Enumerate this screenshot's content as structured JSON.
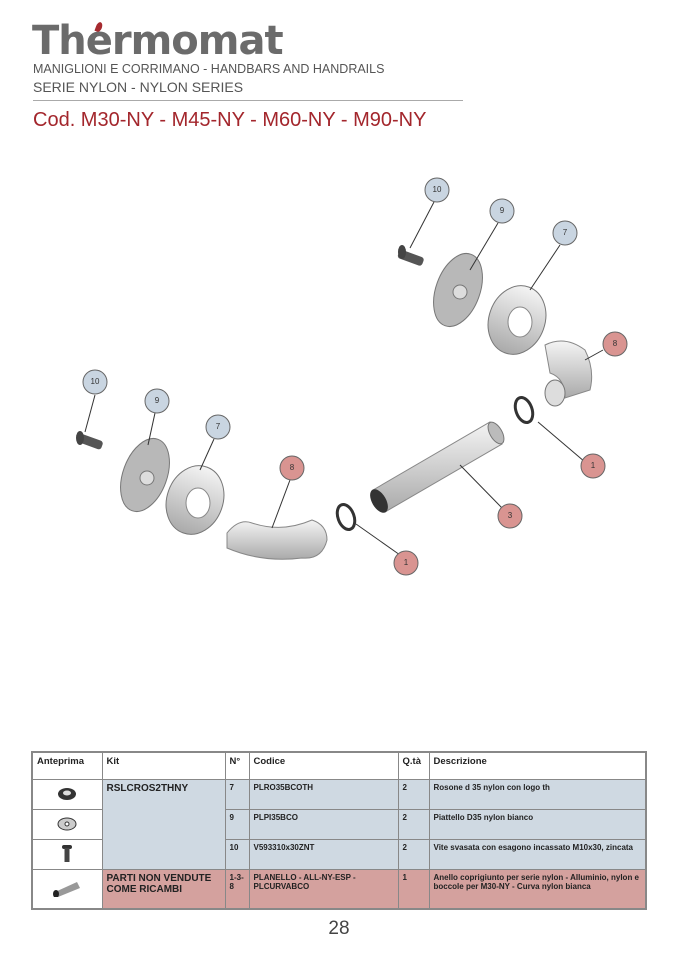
{
  "header": {
    "brand": "Thermomat",
    "subtitle1": "MANIGLIONI E CORRIMANO - HANDBARS AND HANDRAILS",
    "subtitle2": "SERIE NYLON - NYLON SERIES",
    "code_title": "Cod. M30-NY - M45-NY - M60-NY  - M90-NY"
  },
  "diagram": {
    "callouts": [
      "10",
      "9",
      "7",
      "8",
      "1",
      "3",
      "10",
      "9",
      "7",
      "8",
      "1"
    ],
    "colors": {
      "kit": "#c9d5e1",
      "not_sold": "#d99491"
    }
  },
  "table": {
    "headers": [
      "Anteprima",
      "Kit",
      "N°",
      "Codice",
      "Q.tà",
      "Descrizione"
    ],
    "kit_name": "RSLCROS2THNY",
    "rows": [
      {
        "preview": "rosette-icon",
        "n": "7",
        "code": "PLRO35BCOTH",
        "qty": "2",
        "desc": "Rosone d 35 nylon con logo th"
      },
      {
        "preview": "plate-icon",
        "n": "9",
        "code": "PLPI35BCO",
        "qty": "2",
        "desc": "Piattello D35 nylon bianco"
      },
      {
        "preview": "screw-icon",
        "n": "10",
        "code": "V593310x30ZNT",
        "qty": "2",
        "desc": "Vite svasata con esagono incassato M10x30, zincata"
      }
    ],
    "not_sold": {
      "preview": "tube-icon",
      "kit": "PARTI NON VENDUTE COME RICAMBI",
      "n": "1-3-8",
      "code": "PLANELLO - ALL-NY-ESP - PLCURVABCO",
      "qty": "1",
      "desc": "Anello coprigiunto per serie nylon - Alluminio, nylon e boccole per M30-NY - Curva nylon bianca"
    },
    "colors": {
      "kit_row": "#cfd9e2",
      "not_sold_row": "#d4a19e"
    }
  },
  "page_number": "28"
}
